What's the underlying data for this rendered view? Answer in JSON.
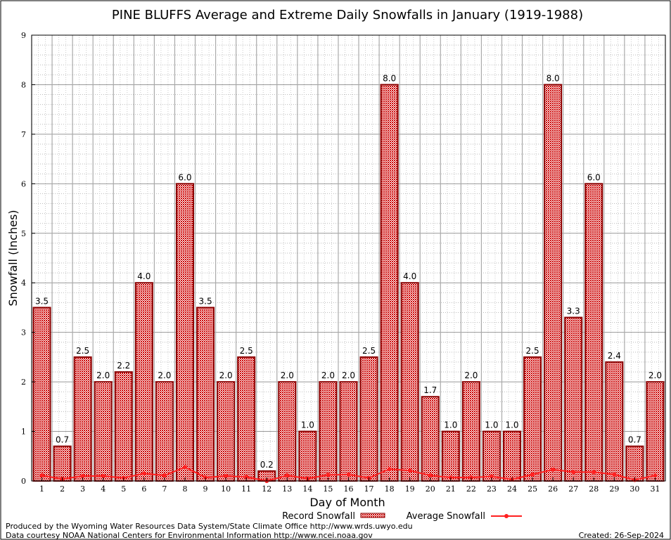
{
  "chart_data": {
    "type": "bar",
    "title": "PINE BLUFFS Average and Extreme Daily Snowfalls in January (1919-1988)",
    "xlabel": "Day of Month",
    "ylabel": "Snowfall (Inches)",
    "ylim": [
      0,
      9
    ],
    "yticks": [
      "0",
      "1",
      "2",
      "3",
      "4",
      "5",
      "6",
      "7",
      "8",
      "9"
    ],
    "categories": [
      "1",
      "2",
      "3",
      "4",
      "5",
      "6",
      "7",
      "8",
      "9",
      "10",
      "11",
      "12",
      "13",
      "14",
      "15",
      "16",
      "17",
      "18",
      "19",
      "20",
      "21",
      "22",
      "23",
      "24",
      "25",
      "26",
      "27",
      "28",
      "29",
      "30",
      "31"
    ],
    "grid": true,
    "legend_position": "bottom",
    "series": [
      {
        "name": "Record Snowfall",
        "type": "bar",
        "color": "#cc0000",
        "values": [
          3.5,
          0.7,
          2.5,
          2.0,
          2.2,
          4.0,
          2.0,
          6.0,
          3.5,
          2.0,
          2.5,
          0.2,
          2.0,
          1.0,
          2.0,
          2.0,
          2.5,
          8.0,
          4.0,
          1.7,
          1.0,
          2.0,
          1.0,
          1.0,
          2.5,
          8.0,
          3.3,
          6.0,
          2.4,
          0.7,
          2.0
        ],
        "labels": [
          "3.5",
          "0.7",
          "2.5",
          "2.0",
          "2.2",
          "4.0",
          "2.0",
          "6.0",
          "3.5",
          "2.0",
          "2.5",
          "0.2",
          "2.0",
          "1.0",
          "2.0",
          "2.0",
          "2.5",
          "8.0",
          "4.0",
          "1.7",
          "1.0",
          "2.0",
          "1.0",
          "1.0",
          "2.5",
          "8.0",
          "3.3",
          "6.0",
          "2.4",
          "0.7",
          "2.0"
        ]
      },
      {
        "name": "Average Snowfall",
        "type": "line",
        "color": "#ff2020",
        "values": [
          0.11,
          0.04,
          0.1,
          0.1,
          0.06,
          0.15,
          0.11,
          0.28,
          0.07,
          0.1,
          0.08,
          0.0,
          0.11,
          0.05,
          0.12,
          0.13,
          0.06,
          0.24,
          0.21,
          0.11,
          0.07,
          0.07,
          0.09,
          0.03,
          0.13,
          0.23,
          0.18,
          0.18,
          0.13,
          0.02,
          0.11
        ]
      }
    ]
  },
  "footer": {
    "credit1": "Produced by the Wyoming Water Resources Data System/State Climate Office http://www.wrds.uwyo.edu",
    "credit2": "Data courtesy NOAA National Centers for Environmental Information http://www.ncei.noaa.gov",
    "created": "Created: 26-Sep-2024"
  }
}
